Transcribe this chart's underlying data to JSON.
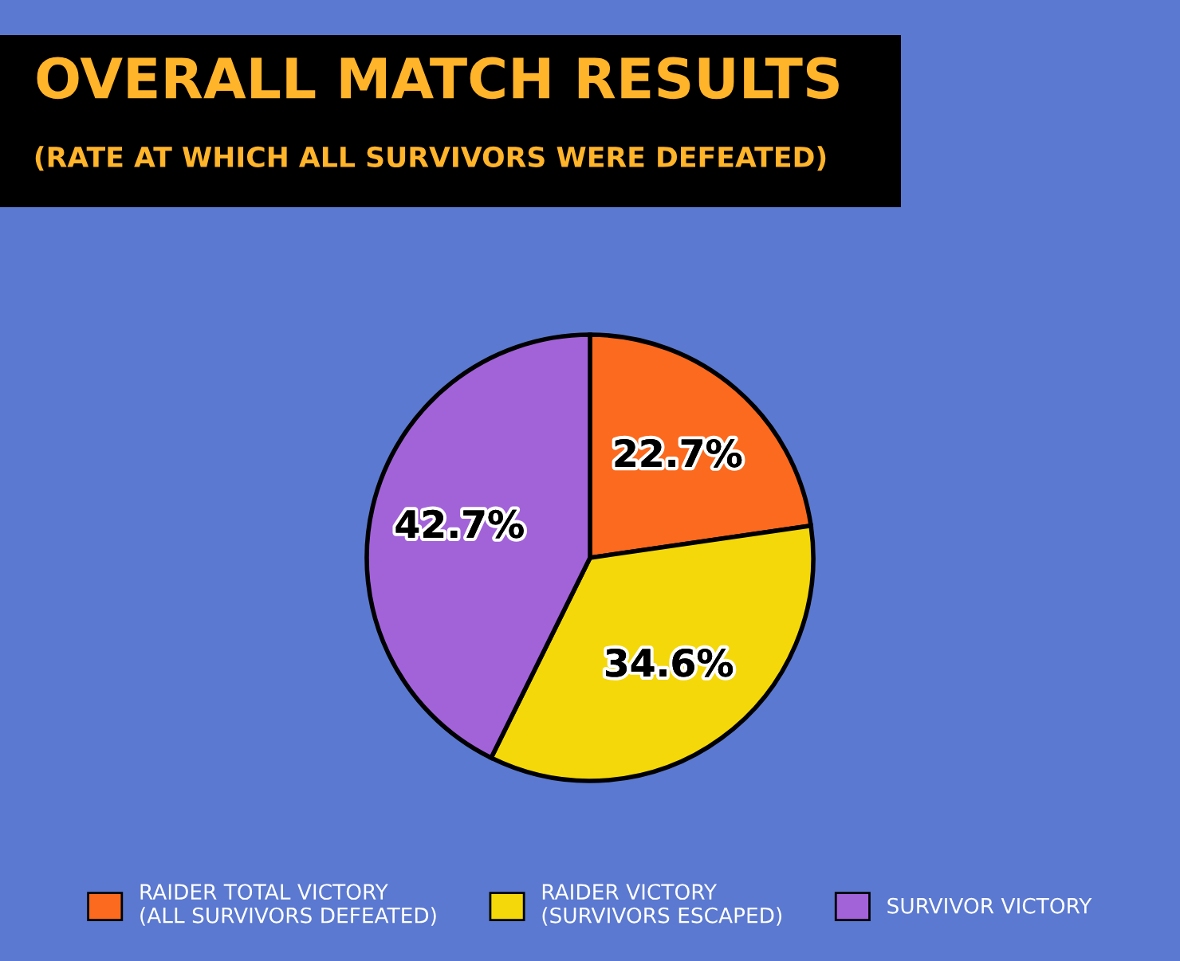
{
  "chart_data": {
    "type": "pie",
    "title": "OVERALL MATCH RESULTS",
    "subtitle": "(RATE AT WHICH ALL SURVIVORS WERE DEFEATED)",
    "categories": [
      "RAIDER TOTAL VICTORY\n(ALL SURVIVORS DEFEATED)",
      "RAIDER VICTORY\n(SURVIVORS ESCAPED)",
      "SURVIVOR VICTORY"
    ],
    "values": [
      22.7,
      34.6,
      42.7
    ],
    "colors": [
      "#fb6a1e",
      "#f4d80a",
      "#a263d9"
    ],
    "value_labels": [
      "22.7%",
      "34.6%",
      "42.7%"
    ],
    "legend": "bottom"
  }
}
